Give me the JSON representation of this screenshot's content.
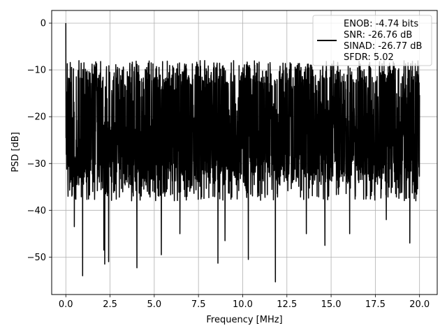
{
  "chart_data": {
    "type": "line",
    "title": "",
    "xlabel": "Frequency [MHz]",
    "ylabel": "PSD [dB]",
    "xlim": [
      -0.8,
      21.0
    ],
    "ylim": [
      -58.0,
      2.7
    ],
    "xticks": [
      0.0,
      2.5,
      5.0,
      7.5,
      10.0,
      12.5,
      15.0,
      17.5,
      20.0
    ],
    "xtick_labels": [
      "0.0",
      "2.5",
      "5.0",
      "7.5",
      "10.0",
      "12.5",
      "15.0",
      "17.5",
      "20.0"
    ],
    "yticks": [
      0,
      -10,
      -20,
      -30,
      -40,
      -50
    ],
    "ytick_labels": [
      "0",
      "−10",
      "−20",
      "−30",
      "−40",
      "−50"
    ],
    "grid": true,
    "legend": {
      "placement": "upper-right",
      "lines": [
        "ENOB: -4.74 bits",
        "SNR: -26.76 dB",
        "SINAD: -26.77 dB",
        "SFDR: 5.02"
      ]
    },
    "series": [
      {
        "color": "#000000",
        "description": "dense noisy spectrum from 0 to 20 MHz",
        "peak": {
          "x": 0.0,
          "y": 0.0
        },
        "x_range": [
          0.0,
          20.0
        ],
        "upper_envelope_db": -8,
        "typical_center_db": -20,
        "lower_envelope_db": -38,
        "deep_dips": [
          {
            "x": 0.48,
            "y": -43.5
          },
          {
            "x": 0.95,
            "y": -54.0
          },
          {
            "x": 2.15,
            "y": -48.5
          },
          {
            "x": 2.2,
            "y": -51.5
          },
          {
            "x": 2.42,
            "y": -51.0
          },
          {
            "x": 4.02,
            "y": -52.3
          },
          {
            "x": 5.4,
            "y": -49.5
          },
          {
            "x": 6.45,
            "y": -45.0
          },
          {
            "x": 8.6,
            "y": -51.3
          },
          {
            "x": 9.0,
            "y": -46.5
          },
          {
            "x": 10.32,
            "y": -50.5
          },
          {
            "x": 11.85,
            "y": -55.3
          },
          {
            "x": 13.6,
            "y": -45.0
          },
          {
            "x": 14.65,
            "y": -47.5
          },
          {
            "x": 16.05,
            "y": -45.0
          },
          {
            "x": 18.12,
            "y": -42.0
          },
          {
            "x": 19.45,
            "y": -47.0
          }
        ]
      }
    ]
  }
}
